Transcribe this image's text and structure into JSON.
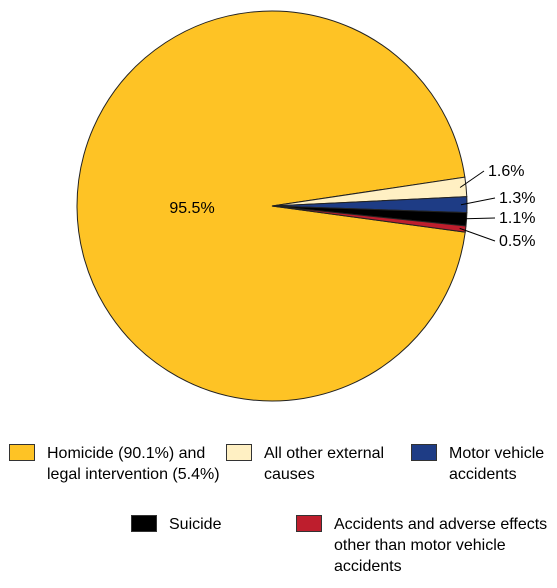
{
  "chart_data": {
    "type": "pie",
    "slices": [
      {
        "label": "Homicide (90.1%) and legal intervention (5.4%)",
        "value": 95.5,
        "display": "95.5%",
        "color": "#FEC325"
      },
      {
        "label": "All other external causes",
        "value": 1.6,
        "display": "1.6%",
        "color": "#FFF0C3"
      },
      {
        "label": "Motor vehicle accidents",
        "value": 1.3,
        "display": "1.3%",
        "color": "#1E3C85"
      },
      {
        "label": "Suicide",
        "value": 1.1,
        "display": "1.1%",
        "color": "#000000"
      },
      {
        "label": "Accidents and adverse effects other than motor vehicle accidents",
        "value": 0.5,
        "display": "0.5%",
        "color": "#BE1E2D"
      }
    ],
    "legend_placement": "bottom"
  }
}
